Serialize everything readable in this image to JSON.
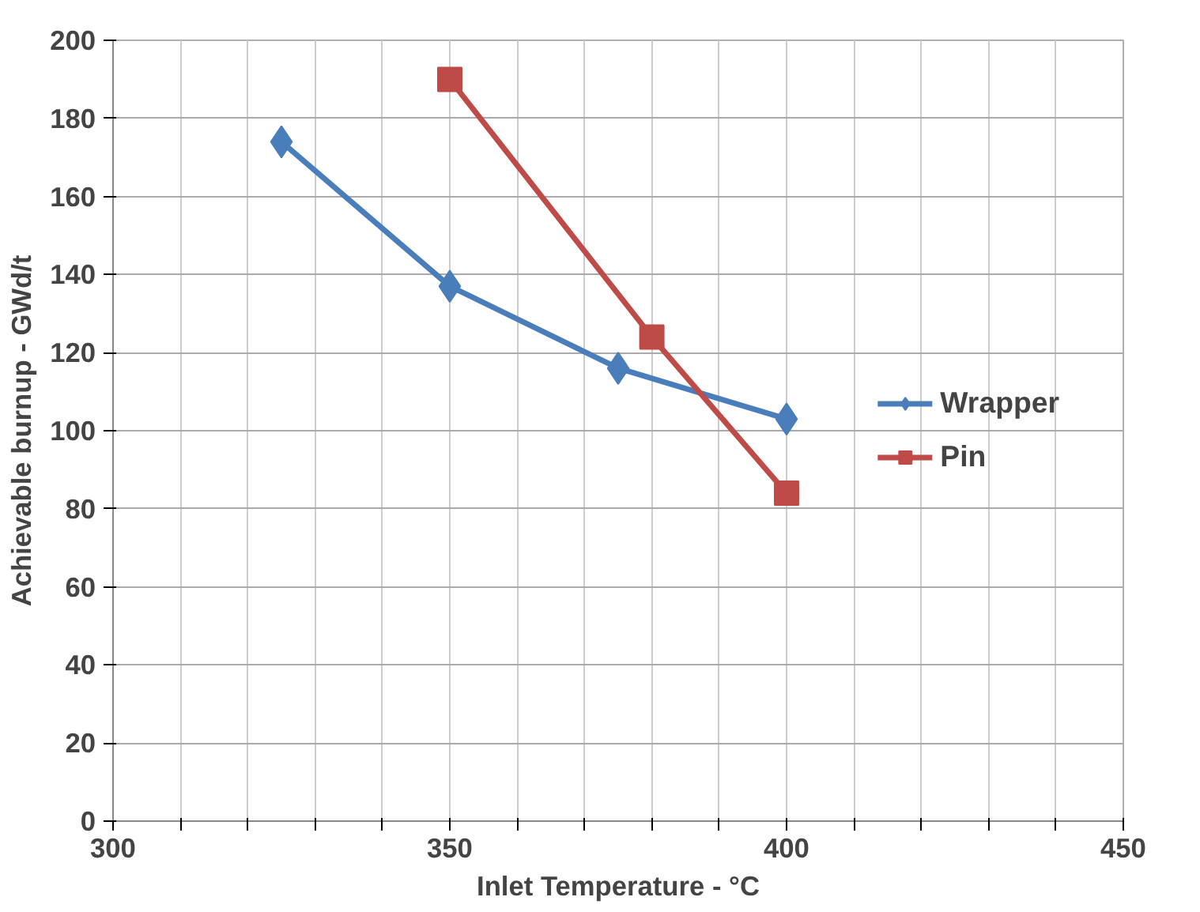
{
  "chart_data": {
    "type": "line",
    "xlabel": "Inlet Temperature - °C",
    "ylabel": "Achievable burnup - GWd/t",
    "xlim": [
      300,
      450
    ],
    "ylim": [
      0,
      200
    ],
    "xticks": [
      300,
      {
        "value": 310,
        "label": null
      },
      {
        "value": 320,
        "label": null
      },
      {
        "value": 330,
        "label": null
      },
      {
        "value": 340,
        "label": null
      },
      350,
      {
        "value": 360,
        "label": null
      },
      {
        "value": 370,
        "label": null
      },
      {
        "value": 380,
        "label": null
      },
      {
        "value": 390,
        "label": null
      },
      400,
      {
        "value": 410,
        "label": null
      },
      {
        "value": 420,
        "label": null
      },
      {
        "value": 430,
        "label": null
      },
      {
        "value": 440,
        "label": null
      },
      450
    ],
    "yticks": [
      0,
      20,
      40,
      60,
      80,
      100,
      120,
      140,
      160,
      180,
      200
    ],
    "grid": true,
    "legend": "right",
    "series": [
      {
        "name": "Wrapper",
        "color": "#4a7ebb",
        "marker": "diamond",
        "x": [
          325,
          350,
          375,
          400
        ],
        "values": [
          174,
          137,
          116,
          103
        ]
      },
      {
        "name": "Pin",
        "color": "#be4b48",
        "marker": "square",
        "x": [
          350,
          380,
          400
        ],
        "values": [
          190,
          124,
          84
        ]
      }
    ]
  }
}
